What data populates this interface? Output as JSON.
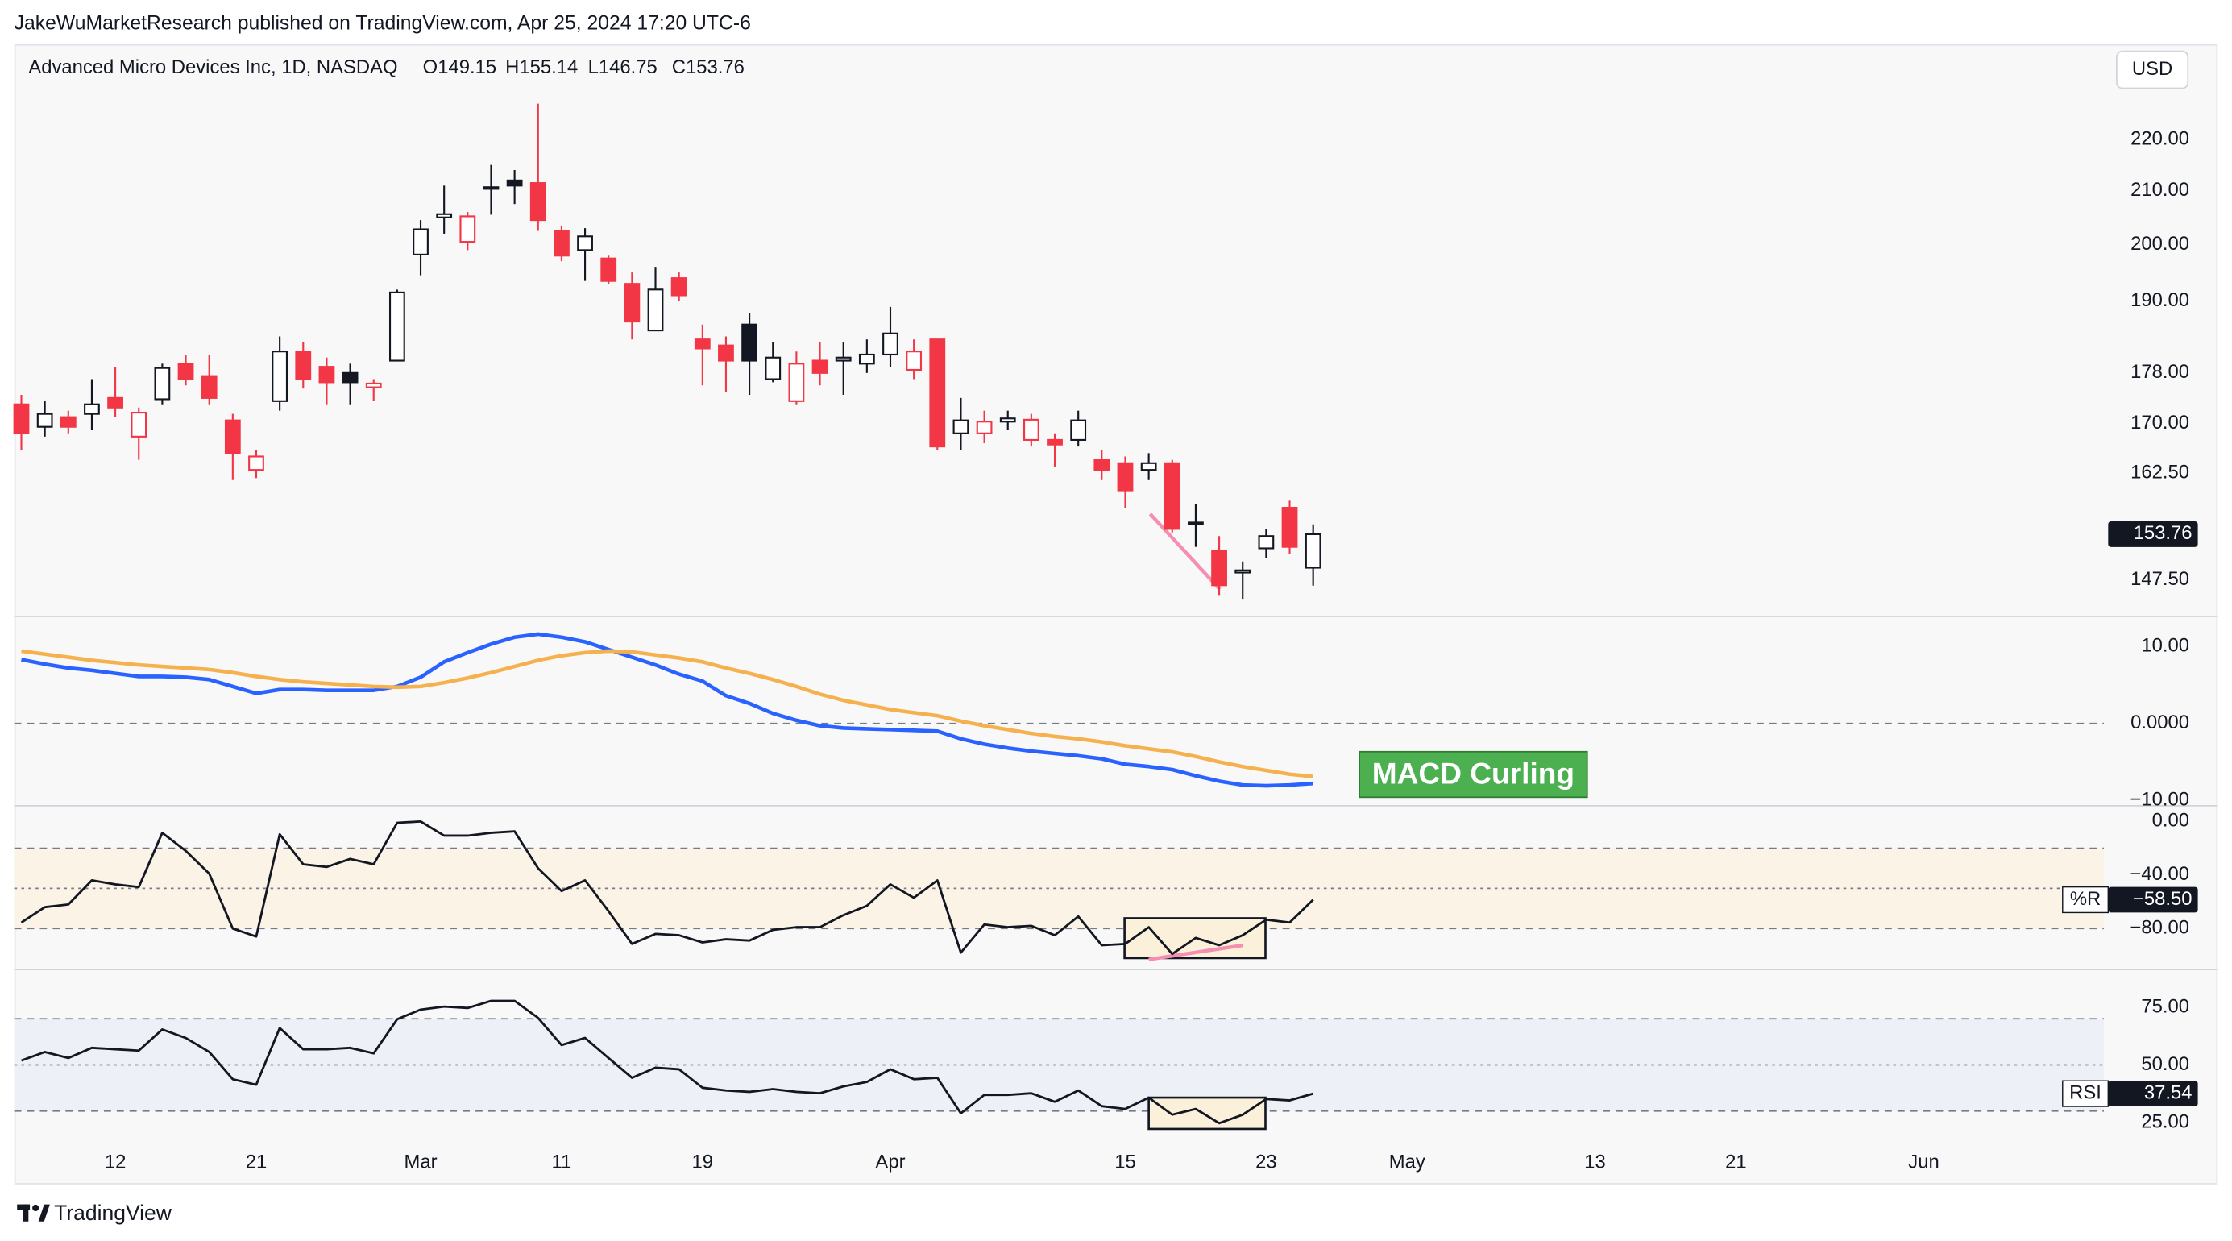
{
  "header": "JakeWuMarketResearch published on TradingView.com, Apr 25, 2024 17:20 UTC-6",
  "currency": "USD",
  "footer_logo": "TradingView",
  "chart_data": [
    {
      "type": "candlestick",
      "title": "Advanced Micro Devices Inc, 1D, NASDAQ",
      "ohlc_labels": [
        "O149.15",
        "H155.14",
        "L146.75",
        "C153.76"
      ],
      "log": true,
      "up_color": "#131722",
      "down_color": "#f23645",
      "categories": [
        null,
        null,
        null,
        null,
        "12",
        null,
        null,
        null,
        null,
        null,
        "21",
        null,
        null,
        null,
        null,
        null,
        null,
        "Mar",
        null,
        null,
        null,
        null,
        null,
        "11",
        null,
        null,
        null,
        null,
        null,
        "19",
        null,
        null,
        null,
        null,
        null,
        null,
        null,
        "Apr",
        null,
        null,
        null,
        null,
        null,
        null,
        null,
        null,
        null,
        "15",
        null,
        null,
        null,
        null,
        null,
        "23",
        null,
        null,
        null,
        null,
        null,
        "May",
        null,
        null,
        null,
        null,
        null,
        null,
        null,
        "13",
        null,
        null,
        null,
        null,
        null,
        "21",
        null,
        null,
        null,
        null,
        null,
        null,
        null,
        "Jun"
      ],
      "open": [
        173,
        169.5,
        171,
        171.5,
        174,
        168,
        173.8,
        179.5,
        177.5,
        170.5,
        163,
        173.5,
        181.5,
        179,
        178,
        175.7,
        180,
        198.2,
        205,
        200.5,
        210.5,
        212,
        211.5,
        202.5,
        199,
        197.5,
        193,
        185,
        194,
        183.5,
        182.5,
        186,
        177,
        173.5,
        180,
        180,
        179.5,
        181,
        178.5,
        183.5,
        168.5,
        168.5,
        170.3,
        167.5,
        167.5,
        167.5,
        164.5,
        164,
        163,
        164,
        155.2,
        151.5,
        148.5,
        151.8,
        157.5,
        149.15,
        null,
        null,
        null,
        null,
        null,
        null,
        null,
        null,
        null,
        null,
        null,
        null,
        null,
        null,
        null,
        null,
        null,
        null,
        null,
        null,
        null,
        null,
        null,
        null,
        null,
        null
      ],
      "high": [
        174.5,
        173.5,
        172,
        177,
        179,
        172.5,
        179.5,
        181,
        181,
        171.5,
        166,
        184,
        183,
        180.5,
        179.5,
        177,
        192,
        204.5,
        211,
        206,
        215,
        214,
        227.3,
        203.5,
        203,
        198,
        195,
        196,
        195,
        186,
        184,
        188,
        183,
        181.5,
        183,
        183,
        183.5,
        189,
        183.5,
        183.5,
        174,
        172,
        172,
        171.5,
        168.5,
        172,
        166,
        165,
        165.5,
        164.5,
        158,
        153.5,
        150,
        154.5,
        158.5,
        155.14,
        null,
        null,
        null,
        null,
        null,
        null,
        null,
        null,
        null,
        null,
        null,
        null,
        null,
        null,
        null,
        null,
        null,
        null,
        null,
        null,
        null,
        null,
        null,
        null,
        null,
        null
      ],
      "low": [
        166,
        168,
        168.5,
        169,
        171,
        164.5,
        173,
        176,
        173,
        161.5,
        161.8,
        172,
        175.5,
        173,
        173,
        173.5,
        180,
        194.5,
        202,
        199,
        205.5,
        207.5,
        202.5,
        197,
        193.5,
        193,
        183.5,
        185,
        190,
        176,
        175,
        174.5,
        176.5,
        173,
        176,
        174.5,
        178,
        179,
        177,
        166,
        166,
        167,
        169,
        166.5,
        163.5,
        166.5,
        161.5,
        157.5,
        161.5,
        154,
        152,
        145.5,
        145,
        150.5,
        151,
        146.75,
        null,
        null,
        null,
        null,
        null,
        null,
        null,
        null,
        null,
        null,
        null,
        null,
        null,
        null,
        null,
        null,
        null,
        null,
        null,
        null,
        null,
        null,
        null,
        null,
        null,
        null
      ],
      "close": [
        168.5,
        171.5,
        169.5,
        173,
        172.5,
        171.7,
        178.8,
        177,
        174,
        165.5,
        165,
        181.5,
        177,
        176.5,
        176.5,
        176.3,
        191.5,
        202.8,
        205.6,
        205.2,
        210.7,
        211,
        204.5,
        198,
        201.5,
        193.5,
        186.5,
        192,
        191,
        182,
        180,
        180,
        180.5,
        179.5,
        178,
        180.5,
        181,
        184.5,
        181.5,
        166.5,
        170.5,
        170.3,
        170.8,
        170.6,
        166.8,
        170.5,
        163,
        160,
        164,
        154.5,
        155.4,
        146.8,
        148.8,
        153.5,
        152,
        153.76,
        null,
        null,
        null,
        null,
        null,
        null,
        null,
        null,
        null,
        null,
        null,
        null,
        null,
        null,
        null,
        null,
        null,
        null,
        null,
        null,
        null,
        null,
        null,
        null,
        null,
        null
      ],
      "ylim": [
        142.7,
        239.6
      ],
      "yticks": [
        {
          "value": 220,
          "label": "220.00"
        },
        {
          "value": 210,
          "label": "210.00"
        },
        {
          "value": 200,
          "label": "200.00"
        },
        {
          "value": 190,
          "label": "190.00"
        },
        {
          "value": 178,
          "label": "178.00"
        },
        {
          "value": 170,
          "label": "170.00"
        },
        {
          "value": 162.5,
          "label": "162.50"
        },
        {
          "value": 147.5,
          "label": "147.50"
        }
      ]
    },
    {
      "type": "line",
      "annotation": "MACD Curling",
      "zero_line": true,
      "series": [
        {
          "color": "#2962ff",
          "values": [
            8.3,
            7.7,
            7.2,
            6.9,
            6.5,
            6.1,
            6.1,
            6.0,
            5.7,
            4.8,
            3.9,
            4.4,
            4.4,
            4.3,
            4.3,
            4.3,
            4.8,
            6.0,
            8.0,
            9.2,
            10.3,
            11.2,
            11.6,
            11.2,
            10.6,
            9.6,
            8.6,
            7.6,
            6.4,
            5.5,
            3.6,
            2.6,
            1.3,
            0.4,
            -0.3,
            -0.6,
            -0.7,
            -0.8,
            -0.9,
            -1.0,
            -2.0,
            -2.7,
            -3.2,
            -3.6,
            -3.9,
            -4.2,
            -4.6,
            -5.3,
            -5.6,
            -6.0,
            -6.8,
            -7.5,
            -8.0,
            -8.1,
            -8.0,
            -7.8,
            null,
            null,
            null,
            null,
            null,
            null,
            null,
            null,
            null,
            null,
            null,
            null,
            null,
            null,
            null,
            null,
            null,
            null,
            null,
            null,
            null,
            null,
            null,
            null,
            null,
            null
          ]
        },
        {
          "color": "#f6b14f",
          "values": [
            9.4,
            9.0,
            8.6,
            8.2,
            7.9,
            7.6,
            7.4,
            7.2,
            7.0,
            6.6,
            6.1,
            5.7,
            5.4,
            5.2,
            5.0,
            4.8,
            4.7,
            4.8,
            5.3,
            5.9,
            6.6,
            7.4,
            8.2,
            8.8,
            9.2,
            9.4,
            9.3,
            8.9,
            8.5,
            8.0,
            7.2,
            6.5,
            5.7,
            4.8,
            3.8,
            3.0,
            2.4,
            1.8,
            1.4,
            1.0,
            0.3,
            -0.3,
            -0.8,
            -1.3,
            -1.7,
            -2.0,
            -2.4,
            -2.9,
            -3.3,
            -3.7,
            -4.3,
            -5.0,
            -5.6,
            -6.1,
            -6.6,
            -6.9,
            null,
            null,
            null,
            null,
            null,
            null,
            null,
            null,
            null,
            null,
            null,
            null,
            null,
            null,
            null,
            null,
            null,
            null,
            null,
            null,
            null,
            null,
            null,
            null,
            null,
            null
          ]
        }
      ],
      "ylim": [
        -10.7,
        13.9
      ],
      "yticks": [
        {
          "value": 10,
          "label": "10.00"
        },
        {
          "value": 0,
          "label": "0.0000"
        },
        {
          "value": -10,
          "label": "−10.00"
        }
      ]
    },
    {
      "type": "line",
      "name": "%R",
      "color": "#131722",
      "band": [
        -80,
        -20
      ],
      "band_color": "#fbf3e6",
      "midline": -50,
      "last_value_label": "−58.50",
      "values": [
        -75.5,
        -64,
        -62,
        -44,
        -47,
        -49,
        -8.5,
        -22,
        -39,
        -80,
        -86,
        -9.6,
        -32,
        -34,
        -28,
        -32,
        -1,
        0,
        -10.6,
        -10.6,
        -8.5,
        -7.4,
        -35,
        -52,
        -44,
        -67,
        -91.5,
        -84,
        -85,
        -90.4,
        -88,
        -89,
        -81,
        -79,
        -79,
        -70,
        -63,
        -47,
        -57,
        -44,
        -98,
        -77,
        -79,
        -78,
        -85,
        -71,
        -92.5,
        -91.5,
        -79,
        -99,
        -87,
        -92.5,
        -85,
        -73.4,
        -75.5,
        -58.5,
        null,
        null,
        null,
        null,
        null,
        null,
        null,
        null,
        null,
        null,
        null,
        null,
        null,
        null,
        null,
        null,
        null,
        null,
        null,
        null,
        null,
        null,
        null,
        null,
        null,
        null
      ],
      "ylim": [
        -110.6,
        11.7
      ],
      "yticks": [
        {
          "value": 0,
          "label": "0.00"
        },
        {
          "value": -40,
          "label": "−40.00"
        },
        {
          "value": -80,
          "label": "−80.00"
        }
      ]
    },
    {
      "type": "line",
      "name": "RSI",
      "color": "#131722",
      "band": [
        30,
        70
      ],
      "band_color": "#eef0f8",
      "midline": 50,
      "values": [
        51.9,
        55.6,
        53,
        57.4,
        56.8,
        56.2,
        65.4,
        61.7,
        55.6,
        43.8,
        41.4,
        66,
        56.8,
        56.8,
        57.4,
        55,
        69.8,
        74,
        75.3,
        74.7,
        77.8,
        77.8,
        70.4,
        58.6,
        61.7,
        53,
        44.4,
        48.8,
        48.1,
        40.1,
        38.9,
        38.3,
        39.5,
        38.3,
        37.7,
        40.7,
        42.6,
        48.1,
        43.8,
        44.4,
        29,
        37,
        37,
        37.7,
        34,
        38.9,
        32.1,
        30.9,
        35.8,
        28.4,
        30.9,
        24.7,
        28.4,
        35.2,
        34.6,
        37.54,
        null,
        null,
        null,
        null,
        null,
        null,
        null,
        null,
        null,
        null,
        null,
        null,
        null,
        null,
        null,
        null,
        null,
        null,
        null,
        null,
        null,
        null,
        null,
        null,
        null,
        null
      ],
      "ylim": [
        17.9,
        91.4
      ],
      "yticks": [
        {
          "value": 75,
          "label": "75.00"
        },
        {
          "value": 50,
          "label": "50.00"
        },
        {
          "value": 25,
          "label": "25.00"
        }
      ]
    }
  ]
}
